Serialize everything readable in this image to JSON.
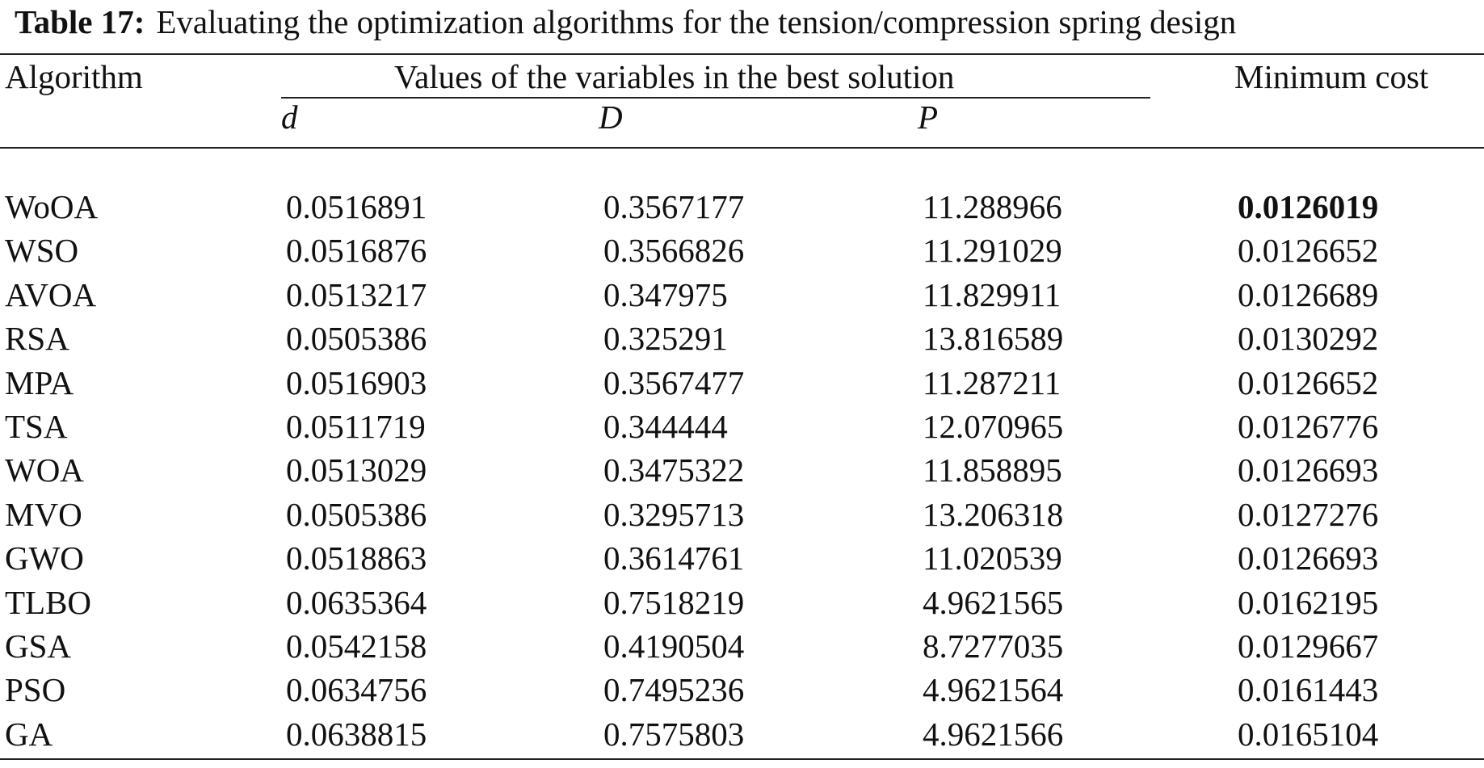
{
  "caption": {
    "label": "Table 17:",
    "text": "Evaluating the optimization algorithms for the tension/compression spring design"
  },
  "header": {
    "algorithm": "Algorithm",
    "group": "Values of the variables in the best solution",
    "var_d": "d",
    "var_D": "D",
    "var_P": "P",
    "min_cost": "Minimum cost"
  },
  "rows": [
    {
      "algorithm": "WoOA",
      "d": "0.0516891",
      "D": "0.3567177",
      "P": "11.288966",
      "cost": "0.0126019"
    },
    {
      "algorithm": "WSO",
      "d": "0.0516876",
      "D": "0.3566826",
      "P": "11.291029",
      "cost": "0.0126652"
    },
    {
      "algorithm": "AVOA",
      "d": "0.0513217",
      "D": "0.347975",
      "P": "11.829911",
      "cost": "0.0126689"
    },
    {
      "algorithm": "RSA",
      "d": "0.0505386",
      "D": "0.325291",
      "P": "13.816589",
      "cost": "0.0130292"
    },
    {
      "algorithm": "MPA",
      "d": "0.0516903",
      "D": "0.3567477",
      "P": "11.287211",
      "cost": "0.0126652"
    },
    {
      "algorithm": "TSA",
      "d": "0.0511719",
      "D": "0.344444",
      "P": "12.070965",
      "cost": "0.0126776"
    },
    {
      "algorithm": "WOA",
      "d": "0.0513029",
      "D": "0.3475322",
      "P": "11.858895",
      "cost": "0.0126693"
    },
    {
      "algorithm": "MVO",
      "d": "0.0505386",
      "D": "0.3295713",
      "P": "13.206318",
      "cost": "0.0127276"
    },
    {
      "algorithm": "GWO",
      "d": "0.0518863",
      "D": "0.3614761",
      "P": "11.020539",
      "cost": "0.0126693"
    },
    {
      "algorithm": "TLBO",
      "d": "0.0635364",
      "D": "0.7518219",
      "P": "4.9621565",
      "cost": "0.0162195"
    },
    {
      "algorithm": "GSA",
      "d": "0.0542158",
      "D": "0.4190504",
      "P": "8.7277035",
      "cost": "0.0129667"
    },
    {
      "algorithm": "PSO",
      "d": "0.0634756",
      "D": "0.7495236",
      "P": "4.9621564",
      "cost": "0.0161443"
    },
    {
      "algorithm": "GA",
      "d": "0.0638815",
      "D": "0.7575803",
      "P": "4.9621566",
      "cost": "0.0165104"
    }
  ],
  "best_row_index": 0
}
